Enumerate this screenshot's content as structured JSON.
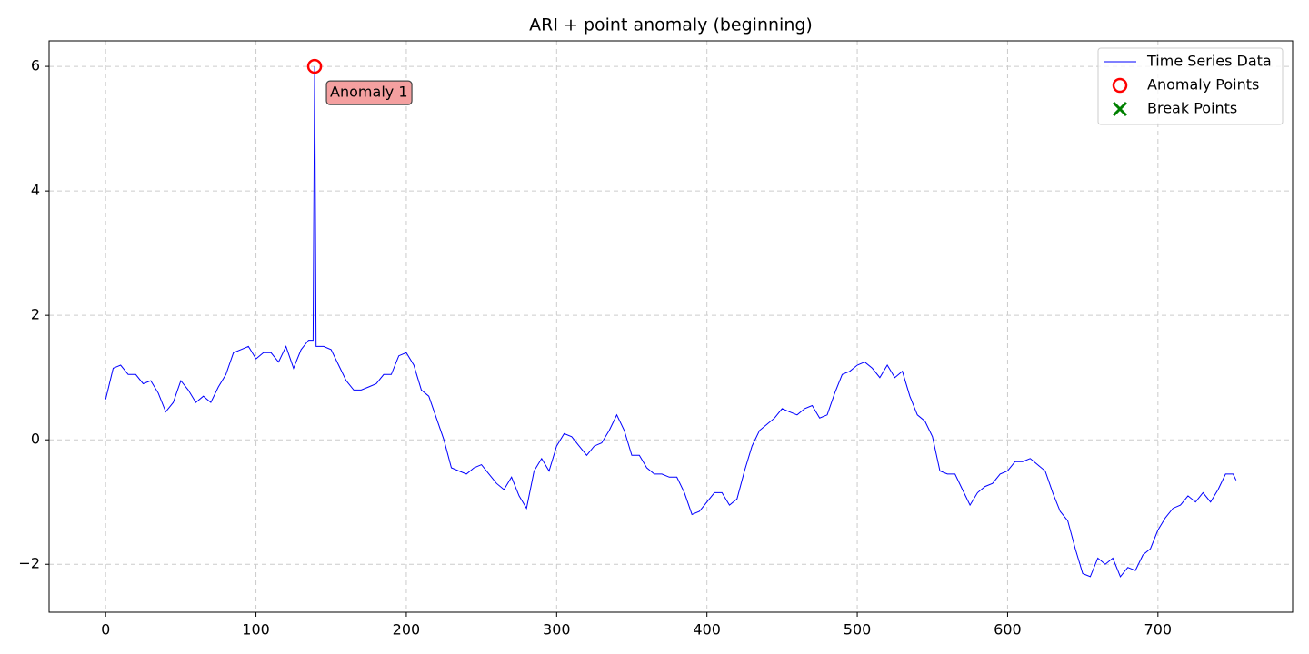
{
  "chart_data": {
    "type": "line",
    "title": "ARI + point anomaly (beginning)",
    "annotation": "Anomaly 1",
    "xlim": [
      -37.6,
      789.6
    ],
    "ylim": [
      -2.77,
      6.41
    ],
    "xticks": [
      0,
      100,
      200,
      300,
      400,
      500,
      600,
      700
    ],
    "yticks": [
      {
        "value": -2,
        "label": "−2"
      },
      0,
      2,
      4,
      6
    ],
    "grid": true,
    "legend": "upper right",
    "series": [
      {
        "name": "Time Series Data",
        "color": "#0000ff",
        "mark": "line",
        "x": [
          0,
          5,
          10,
          15,
          20,
          25,
          30,
          35,
          40,
          45,
          50,
          55,
          60,
          65,
          70,
          75,
          80,
          85,
          90,
          95,
          100,
          105,
          110,
          115,
          120,
          125,
          130,
          135,
          138,
          139,
          140,
          145,
          150,
          155,
          160,
          165,
          170,
          175,
          180,
          185,
          190,
          195,
          200,
          205,
          210,
          215,
          220,
          225,
          230,
          235,
          240,
          245,
          250,
          255,
          260,
          265,
          270,
          275,
          280,
          285,
          290,
          295,
          300,
          305,
          310,
          315,
          320,
          325,
          330,
          335,
          340,
          345,
          350,
          355,
          360,
          365,
          370,
          375,
          380,
          385,
          390,
          395,
          400,
          405,
          410,
          415,
          420,
          425,
          430,
          435,
          440,
          445,
          450,
          455,
          460,
          465,
          470,
          475,
          480,
          485,
          490,
          495,
          500,
          505,
          510,
          515,
          520,
          525,
          530,
          535,
          540,
          545,
          550,
          555,
          560,
          565,
          570,
          575,
          580,
          585,
          590,
          595,
          600,
          605,
          610,
          615,
          620,
          625,
          630,
          635,
          640,
          645,
          650,
          655,
          660,
          665,
          670,
          675,
          680,
          685,
          690,
          695,
          700,
          705,
          710,
          715,
          720,
          725,
          730,
          735,
          740,
          745,
          750,
          752
        ],
        "values": [
          0.65,
          1.15,
          1.2,
          1.05,
          1.05,
          0.9,
          0.95,
          0.75,
          0.45,
          0.6,
          0.95,
          0.8,
          0.6,
          0.7,
          0.6,
          0.85,
          1.05,
          1.4,
          1.45,
          1.5,
          1.3,
          1.4,
          1.4,
          1.25,
          1.5,
          1.15,
          1.45,
          1.6,
          1.6,
          6.0,
          1.5,
          1.5,
          1.45,
          1.2,
          0.95,
          0.8,
          0.8,
          0.85,
          0.9,
          1.05,
          1.05,
          1.35,
          1.4,
          1.2,
          0.8,
          0.7,
          0.35,
          0.0,
          -0.45,
          -0.5,
          -0.55,
          -0.45,
          -0.4,
          -0.55,
          -0.7,
          -0.8,
          -0.6,
          -0.9,
          -1.1,
          -0.5,
          -0.3,
          -0.5,
          -0.1,
          0.1,
          0.05,
          -0.1,
          -0.25,
          -0.1,
          -0.05,
          0.15,
          0.4,
          0.15,
          -0.25,
          -0.25,
          -0.45,
          -0.55,
          -0.55,
          -0.6,
          -0.6,
          -0.85,
          -1.2,
          -1.15,
          -1.0,
          -0.85,
          -0.85,
          -1.05,
          -0.95,
          -0.5,
          -0.1,
          0.15,
          0.25,
          0.35,
          0.5,
          0.45,
          0.4,
          0.5,
          0.55,
          0.35,
          0.4,
          0.75,
          1.05,
          1.1,
          1.2,
          1.25,
          1.15,
          1.0,
          1.2,
          1.0,
          1.1,
          0.7,
          0.4,
          0.3,
          0.05,
          -0.5,
          -0.55,
          -0.55,
          -0.8,
          -1.05,
          -0.85,
          -0.75,
          -0.7,
          -0.55,
          -0.5,
          -0.35,
          -0.35,
          -0.3,
          -0.4,
          -0.5,
          -0.85,
          -1.15,
          -1.3,
          -1.75,
          -2.15,
          -2.2,
          -1.9,
          -2.0,
          -1.9,
          -2.2,
          -2.05,
          -2.1,
          -1.85,
          -1.75,
          -1.45,
          -1.25,
          -1.1,
          -1.05,
          -0.9,
          -1.0,
          -0.85,
          -1.0,
          -0.8,
          -0.55,
          -0.55,
          -0.65
        ]
      },
      {
        "name": "Anomaly Points",
        "color": "#ff0000",
        "mark": "circle",
        "x": [
          139
        ],
        "values": [
          6.0
        ]
      },
      {
        "name": "Break Points",
        "color": "#008000",
        "mark": "cross",
        "x": [],
        "values": []
      }
    ]
  }
}
